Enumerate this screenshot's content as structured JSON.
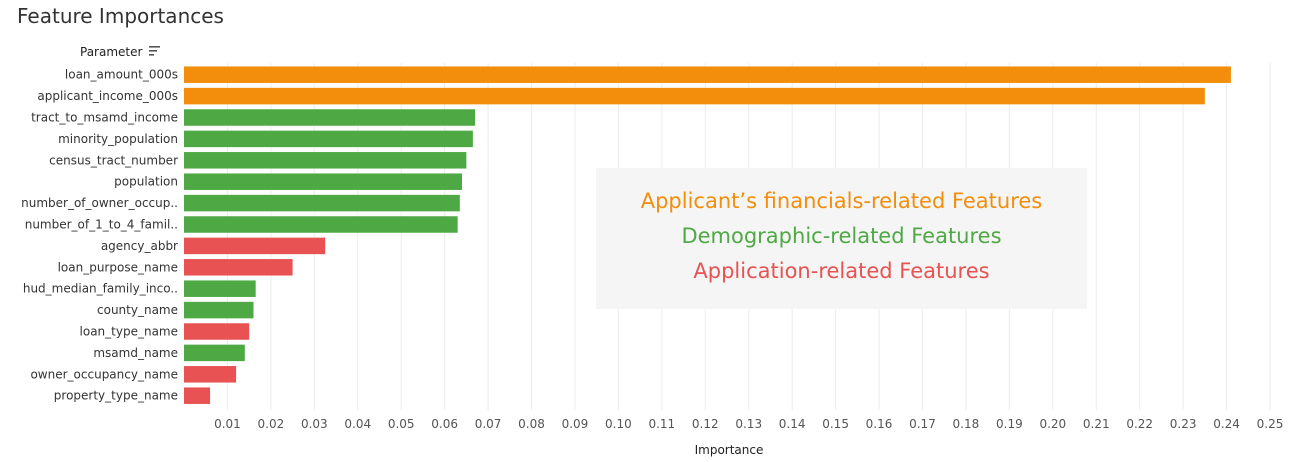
{
  "title": "Feature Importances",
  "parameter_header": "Parameter",
  "colors": {
    "financial": "#f28e0c",
    "demographic": "#4ea944",
    "application": "#e85252"
  },
  "legend": [
    {
      "text": "Applicant’s financials-related Features",
      "group": "financial"
    },
    {
      "text": "Demographic-related Features",
      "group": "demographic"
    },
    {
      "text": "Application-related Features",
      "group": "application"
    }
  ],
  "chart_data": {
    "type": "bar",
    "orientation": "horizontal",
    "xlabel": "Importance",
    "ylabel": "Parameter",
    "xlim": [
      0,
      0.25
    ],
    "x_ticks": [
      "0.01",
      "0.02",
      "0.03",
      "0.04",
      "0.05",
      "0.06",
      "0.07",
      "0.08",
      "0.09",
      "0.10",
      "0.11",
      "0.12",
      "0.13",
      "0.14",
      "0.15",
      "0.16",
      "0.17",
      "0.18",
      "0.19",
      "0.20",
      "0.21",
      "0.22",
      "0.23",
      "0.24",
      "0.25"
    ],
    "grid": true,
    "categories": [
      "loan_amount_000s",
      "applicant_income_000s",
      "tract_to_msamd_income",
      "minority_population",
      "census_tract_number",
      "population",
      "number_of_owner_occup..",
      "number_of_1_to_4_famil..",
      "agency_abbr",
      "loan_purpose_name",
      "hud_median_family_inco..",
      "county_name",
      "loan_type_name",
      "msamd_name",
      "owner_occupancy_name",
      "property_type_name"
    ],
    "values": [
      0.241,
      0.235,
      0.067,
      0.0665,
      0.065,
      0.064,
      0.0635,
      0.063,
      0.0325,
      0.025,
      0.0165,
      0.016,
      0.015,
      0.014,
      0.012,
      0.006
    ],
    "groups": [
      "financial",
      "financial",
      "demographic",
      "demographic",
      "demographic",
      "demographic",
      "demographic",
      "demographic",
      "application",
      "application",
      "demographic",
      "demographic",
      "application",
      "demographic",
      "application",
      "application"
    ]
  }
}
